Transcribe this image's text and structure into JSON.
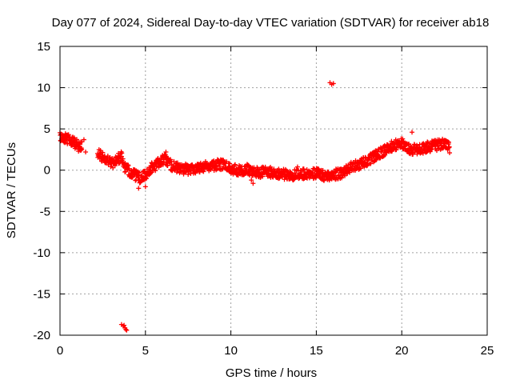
{
  "chart_data": {
    "type": "scatter",
    "title": "Day 077 of 2024, Sidereal Day-to-day VTEC variation (SDTVAR) for receiver ab18",
    "xlabel": "GPS time / hours",
    "ylabel": "SDTVAR / TECUs",
    "xlim": [
      0,
      25
    ],
    "ylim": [
      -20,
      15
    ],
    "xticks": [
      0,
      5,
      10,
      15,
      20,
      25
    ],
    "yticks": [
      -20,
      -15,
      -10,
      -5,
      0,
      5,
      10,
      15
    ],
    "grid": true,
    "marker": "+",
    "series": [
      {
        "name": "SDTVAR",
        "color": "#ff0000",
        "trend": [
          [
            0.0,
            4.0
          ],
          [
            0.3,
            3.9
          ],
          [
            0.6,
            3.7
          ],
          [
            0.9,
            3.2
          ],
          [
            1.1,
            2.9
          ],
          [
            1.3,
            3.1
          ],
          [
            2.2,
            2.0
          ],
          [
            2.5,
            1.6
          ],
          [
            2.8,
            1.2
          ],
          [
            3.1,
            0.9
          ],
          [
            3.4,
            1.4
          ],
          [
            3.6,
            1.6
          ],
          [
            3.8,
            0.3
          ],
          [
            4.1,
            -0.2
          ],
          [
            4.4,
            -0.6
          ],
          [
            4.7,
            -1.0
          ],
          [
            5.0,
            -0.6
          ],
          [
            5.3,
            0.2
          ],
          [
            5.6,
            0.6
          ],
          [
            5.9,
            1.2
          ],
          [
            6.2,
            1.3
          ],
          [
            6.5,
            0.6
          ],
          [
            7.0,
            0.2
          ],
          [
            7.5,
            0.1
          ],
          [
            8.0,
            0.3
          ],
          [
            8.5,
            0.5
          ],
          [
            9.0,
            0.6
          ],
          [
            9.5,
            0.7
          ],
          [
            10.0,
            0.2
          ],
          [
            10.5,
            0.0
          ],
          [
            11.0,
            0.1
          ],
          [
            11.5,
            -0.3
          ],
          [
            12.0,
            -0.2
          ],
          [
            12.5,
            -0.3
          ],
          [
            13.0,
            -0.5
          ],
          [
            13.5,
            -0.6
          ],
          [
            14.0,
            -0.5
          ],
          [
            14.5,
            -0.4
          ],
          [
            15.0,
            -0.4
          ],
          [
            15.5,
            -0.7
          ],
          [
            16.0,
            -0.5
          ],
          [
            16.5,
            -0.4
          ],
          [
            17.0,
            0.3
          ],
          [
            17.5,
            0.7
          ],
          [
            18.0,
            1.2
          ],
          [
            18.5,
            1.8
          ],
          [
            19.0,
            2.4
          ],
          [
            19.5,
            3.0
          ],
          [
            20.0,
            3.3
          ],
          [
            20.5,
            2.5
          ],
          [
            21.0,
            2.5
          ],
          [
            21.5,
            2.8
          ],
          [
            22.0,
            3.0
          ],
          [
            22.5,
            3.2
          ],
          [
            22.8,
            3.0
          ]
        ],
        "spread": 0.8,
        "points": [
          [
            1.4,
            3.7
          ],
          [
            1.1,
            2.5
          ],
          [
            1.5,
            2.2
          ],
          [
            1.0,
            3.0
          ],
          [
            5.0,
            -2.0
          ],
          [
            4.6,
            -2.2
          ],
          [
            6.2,
            2.2
          ],
          [
            11.3,
            -1.6
          ],
          [
            11.2,
            -1.2
          ],
          [
            13.9,
            0.4
          ],
          [
            16.0,
            -0.9
          ],
          [
            20.6,
            4.6
          ],
          [
            22.8,
            2.1
          ],
          [
            15.8,
            10.6
          ],
          [
            15.9,
            10.4
          ],
          [
            16.0,
            10.5
          ],
          [
            3.6,
            -18.7
          ],
          [
            3.7,
            -18.9
          ],
          [
            3.8,
            -19.1
          ],
          [
            3.9,
            -19.4
          ],
          [
            3.85,
            -19.3
          ],
          [
            3.75,
            -18.8
          ]
        ]
      }
    ]
  }
}
